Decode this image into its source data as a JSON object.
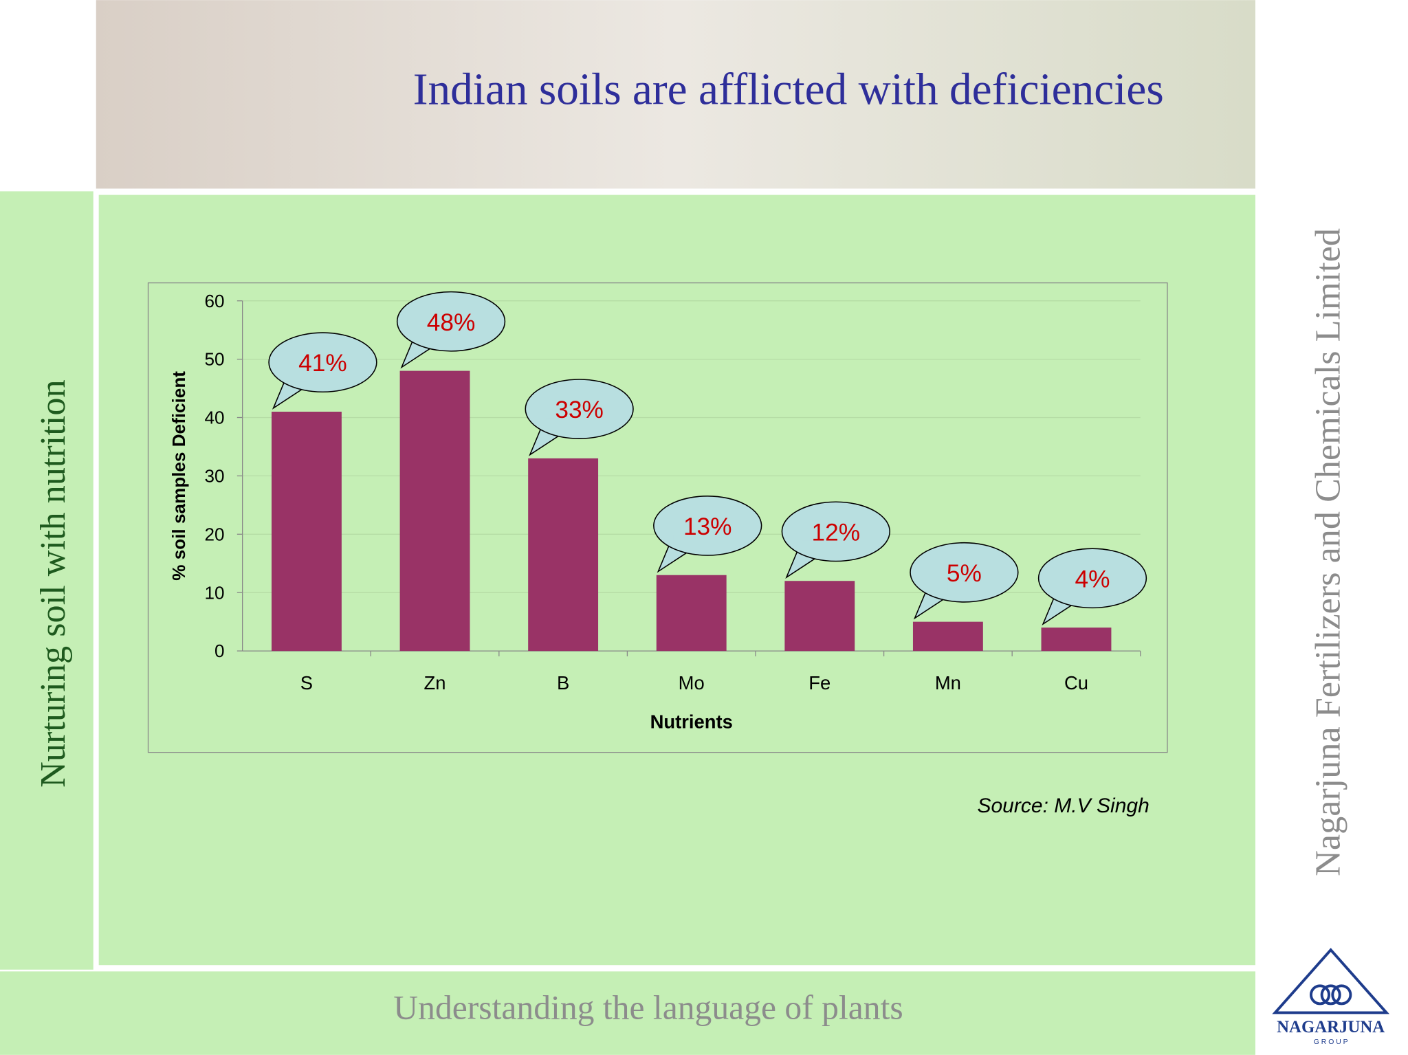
{
  "slide": {
    "title": "Indian soils are afflicted with deficiencies",
    "left_text": "Nurturing soil with nutrition",
    "right_text": "Nagarjuna Fertilizers and Chemicals Limited",
    "footer": "Understanding the language of plants",
    "source": "Source:  M.V Singh",
    "logo": {
      "name": "NAGARJUNA",
      "group": "G R O U P"
    }
  },
  "chart_data": {
    "type": "bar",
    "categories": [
      "S",
      "Zn",
      "B",
      "Mo",
      "Fe",
      "Mn",
      "Cu"
    ],
    "values": [
      41,
      48,
      33,
      13,
      12,
      5,
      4
    ],
    "value_labels": [
      "41%",
      "48%",
      "33%",
      "13%",
      "12%",
      "5%",
      "4%"
    ],
    "color": "#993366",
    "x_label": "Nutrients",
    "y_label": "% soil samples Deficient",
    "ylim": [
      0,
      60
    ],
    "yticks": [
      0,
      10,
      20,
      30,
      40,
      50,
      60
    ],
    "grid": true
  }
}
